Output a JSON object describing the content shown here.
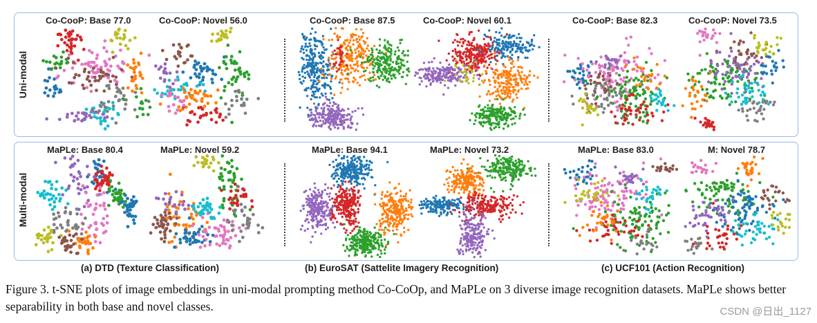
{
  "rows": {
    "uni": "Uni-modal",
    "multi": "Multi-modal"
  },
  "plots": {
    "uni": [
      {
        "title": "Co-CooP: Base 77.0"
      },
      {
        "title": "Co-CooP: Novel  56.0"
      },
      {
        "title": "Co-CooP: Base 87.5"
      },
      {
        "title": "Co-CooP: Novel  60.1"
      },
      {
        "title": "Co-CooP: Base 82.3"
      },
      {
        "title": "Co-CooP: Novel  73.5"
      }
    ],
    "multi": [
      {
        "title": "MaPLe: Base 80.4"
      },
      {
        "title": "MaPLe: Novel 59.2"
      },
      {
        "title": "MaPLe: Base 94.1"
      },
      {
        "title": "MaPLe: Novel 73.2"
      },
      {
        "title": "MaPLe: Base 83.0"
      },
      {
        "title": "M: Novel 78.7"
      }
    ]
  },
  "subcaptions": {
    "a": "(a) DTD (Texture Classification)",
    "b": "(b) EuroSAT (Sattelite Imagery Recognition)",
    "c": "(c) UCF101 (Action Recognition)"
  },
  "caption": "Figure 3. t-SNE plots of image embeddings in uni-modal prompting method Co-CoOp, and MaPLe on 3 diverse image recognition datasets. MaPLe shows better separability in both base and novel classes.",
  "watermark": "CSDN @日出_1127",
  "palette": [
    "#1f77b4",
    "#ff7f0e",
    "#2ca02c",
    "#d62728",
    "#9467bd",
    "#8c564b",
    "#e377c2",
    "#7f7f7f",
    "#bcbd22",
    "#17becf"
  ]
}
